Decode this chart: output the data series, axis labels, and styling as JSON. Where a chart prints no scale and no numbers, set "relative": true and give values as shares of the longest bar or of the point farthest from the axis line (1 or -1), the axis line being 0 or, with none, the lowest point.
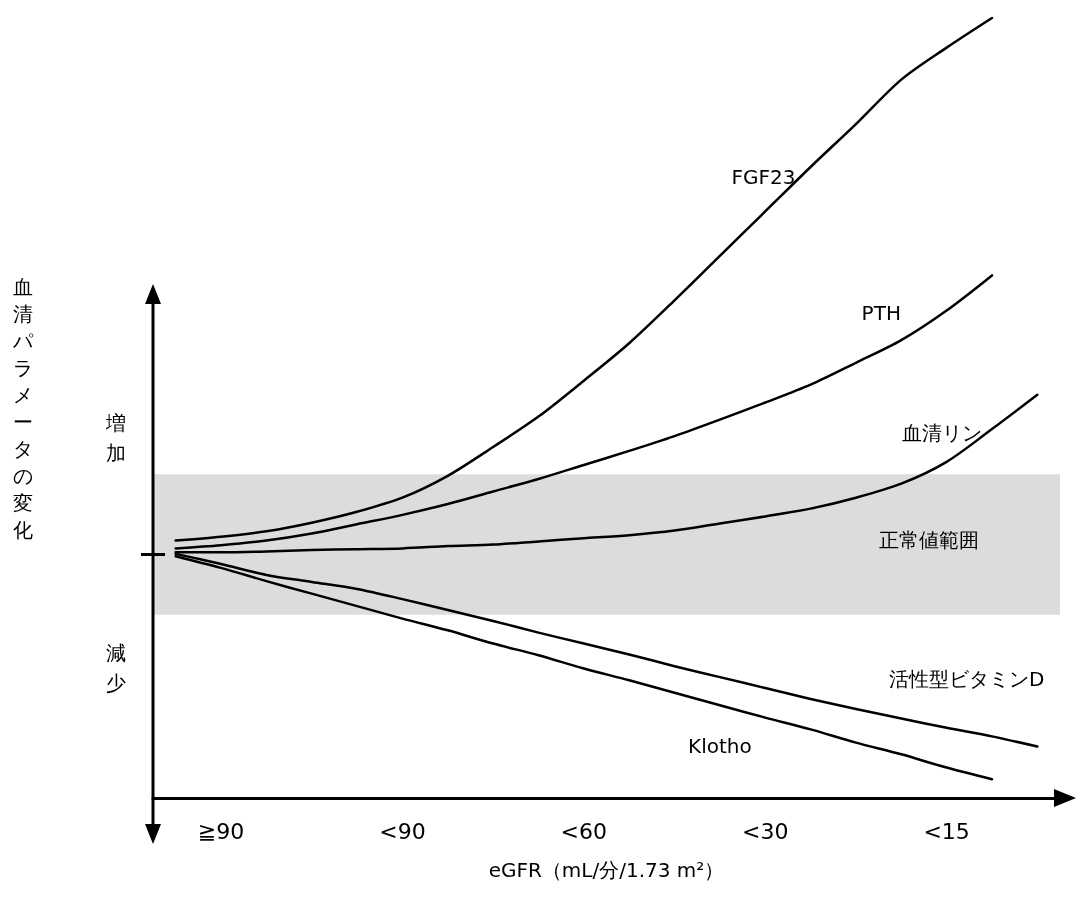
{
  "chart_data": {
    "type": "line",
    "relative": true,
    "xlabel": "eGFR（mL/分/1.73 m²）",
    "ylabel": "血清パラメータの変化",
    "categories": [
      null,
      "≧90",
      null,
      null,
      null,
      "<90",
      null,
      null,
      null,
      "<60",
      null,
      null,
      null,
      "<30",
      null,
      null,
      null,
      "<15",
      null,
      null
    ],
    "annotations": [
      "増加",
      "減少"
    ],
    "bands": [
      {
        "axis": "y",
        "from": 0.235,
        "to": 0.415,
        "label": "正常値範囲",
        "color": "#dcdcdc"
      }
    ],
    "legend": false,
    "grid": false,
    "marker": "none",
    "line_style": "solid",
    "series": [
      {
        "name": "FGF23",
        "color": "#000000",
        "values": [
          0.33,
          0.335,
          0.342,
          0.353,
          0.367,
          0.385,
          0.413,
          0.45,
          0.489,
          0.535,
          0.583,
          0.638,
          0.695,
          0.752,
          0.809,
          0.864,
          0.921,
          0.962,
          1.0,
          null
        ]
      },
      {
        "name": "PTH",
        "color": "#000000",
        "values": [
          0.32,
          0.324,
          0.33,
          0.339,
          0.351,
          0.363,
          0.377,
          0.393,
          0.409,
          0.427,
          0.445,
          0.464,
          0.485,
          0.507,
          0.53,
          0.558,
          0.587,
          0.625,
          0.67,
          null
        ]
      },
      {
        "name": "血清リン",
        "color": "#000000",
        "values": [
          0.315,
          0.315,
          0.316,
          0.318,
          0.319,
          0.32,
          0.323,
          0.325,
          0.329,
          0.333,
          0.337,
          0.343,
          0.352,
          0.361,
          0.371,
          0.385,
          0.403,
          0.431,
          0.473,
          0.517
        ]
      },
      {
        "name": "活性型ビタミンD",
        "color": "#000000",
        "values": [
          0.313,
          0.3,
          0.286,
          0.277,
          0.268,
          0.255,
          0.241,
          0.227,
          0.212,
          0.198,
          0.184,
          0.169,
          0.155,
          0.141,
          0.127,
          0.114,
          0.102,
          0.09,
          0.079,
          0.066
        ]
      },
      {
        "name": "Klotho",
        "color": "#000000",
        "values": [
          0.31,
          0.295,
          0.278,
          0.262,
          0.246,
          0.23,
          0.215,
          0.198,
          0.183,
          0.166,
          0.151,
          0.135,
          0.119,
          0.103,
          0.088,
          0.071,
          0.056,
          0.039,
          0.024,
          null
        ]
      }
    ]
  }
}
